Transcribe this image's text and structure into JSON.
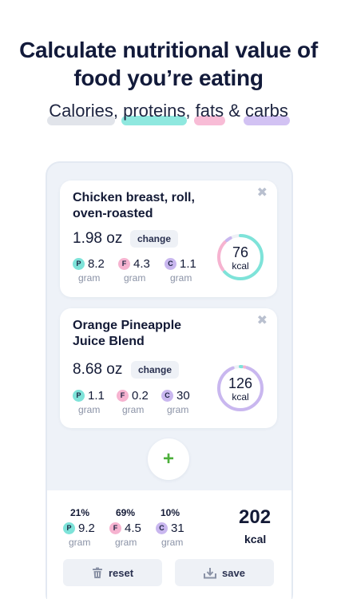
{
  "headline": "Calculate nutritional value of food you’re eating",
  "subline": {
    "w1": "Calories",
    "sep1": ", ",
    "w2": "proteins",
    "sep2": ", ",
    "w3": "fats",
    "sep3": " & ",
    "w4": "carbs"
  },
  "colors": {
    "calories": "#e1e4ea",
    "protein": "#7ee3d9",
    "fat": "#f6b3d0",
    "carbs": "#c9b7ef",
    "plus": "#4caf3b"
  },
  "items": [
    {
      "name": "Chicken breast, roll, oven-roasted",
      "quantity": "1.98 oz",
      "change_label": "change",
      "close_glyph": "✖",
      "macros": {
        "p": {
          "letter": "P",
          "value": "8.2",
          "unit": "gram"
        },
        "f": {
          "letter": "F",
          "value": "4.3",
          "unit": "gram"
        },
        "c": {
          "letter": "C",
          "value": "1.1",
          "unit": "gram"
        }
      },
      "kcal": "76",
      "kcal_unit": "kcal",
      "ring_fractions": {
        "protein": 0.65,
        "fat": 0.24,
        "carbs": 0.05
      }
    },
    {
      "name": "Orange Pineapple Juice Blend",
      "quantity": "8.68 oz",
      "change_label": "change",
      "close_glyph": "✖",
      "macros": {
        "p": {
          "letter": "P",
          "value": "1.1",
          "unit": "gram"
        },
        "f": {
          "letter": "F",
          "value": "0.2",
          "unit": "gram"
        },
        "c": {
          "letter": "C",
          "value": "30",
          "unit": "gram"
        }
      },
      "kcal": "126",
      "kcal_unit": "kcal",
      "ring_fractions": {
        "protein": 0.03,
        "fat": 0.02,
        "carbs": 0.91
      }
    }
  ],
  "add_glyph": "+",
  "totals": {
    "p": {
      "percent": "21%",
      "letter": "P",
      "value": "9.2",
      "unit": "gram"
    },
    "f": {
      "percent": "69%",
      "letter": "F",
      "value": "4.5",
      "unit": "gram"
    },
    "c": {
      "percent": "10%",
      "letter": "C",
      "value": "31",
      "unit": "gram"
    },
    "kcal": "202",
    "kcal_unit": "kcal"
  },
  "buttons": {
    "reset": "reset",
    "save": "save"
  },
  "icons": {
    "reset": "trash-icon",
    "save": "download-icon",
    "close": "close-icon",
    "add": "plus-icon"
  }
}
